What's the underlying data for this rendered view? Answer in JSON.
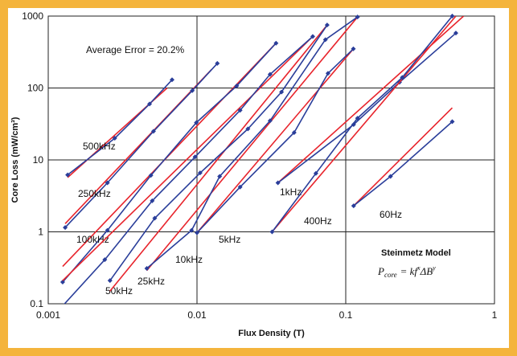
{
  "colors": {
    "frame": "#f4b43c",
    "measured": "#2a3e9a",
    "model": "#e8242c",
    "grid": "#222222"
  },
  "chart_data": {
    "type": "scatter",
    "xscale": "log",
    "yscale": "log",
    "xlim": [
      0.001,
      1
    ],
    "ylim": [
      0.1,
      1000
    ],
    "grid": true,
    "xlabel": "Flux Density (T)",
    "ylabel": "Core Loss (mW/cm³)",
    "x_ticks": [
      "0.001",
      "0.01",
      "0.1",
      "1"
    ],
    "y_ticks": [
      "0.1",
      "1",
      "10",
      "100",
      "1000"
    ],
    "annotations": {
      "average_error": "Average Error = 20.2%",
      "model_title": "Steinmetz Model",
      "equation": {
        "P": "P",
        "sub": "core",
        "rhs": "= kf",
        "x": "x",
        "delta": "ΔB",
        "y": "y"
      }
    },
    "series": [
      {
        "name": "500kHz",
        "measured": [
          [
            0.00135,
            6.2
          ],
          [
            0.0028,
            20
          ],
          [
            0.0048,
            60
          ],
          [
            0.0068,
            130
          ]
        ],
        "model": [
          [
            0.00135,
            5.7
          ],
          [
            0.0063,
            100
          ]
        ]
      },
      {
        "name": "250kHz",
        "measured": [
          [
            0.0013,
            1.15
          ],
          [
            0.0025,
            4.8
          ],
          [
            0.0051,
            25
          ],
          [
            0.0093,
            92
          ],
          [
            0.0137,
            220
          ]
        ],
        "model": [
          [
            0.0013,
            1.3
          ],
          [
            0.0125,
            180
          ]
        ]
      },
      {
        "name": "100kHz",
        "measured": [
          [
            0.00125,
            0.2
          ],
          [
            0.0025,
            1.05
          ],
          [
            0.0049,
            6.1
          ],
          [
            0.0099,
            33
          ],
          [
            0.0185,
            107
          ],
          [
            0.034,
            420
          ]
        ],
        "model": [
          [
            0.00125,
            0.33
          ],
          [
            0.034,
            420
          ]
        ]
      },
      {
        "name": "50kHz",
        "measured": [
          [
            0.0012,
            0.085
          ],
          [
            0.0024,
            0.41
          ],
          [
            0.005,
            2.7
          ],
          [
            0.0097,
            11
          ],
          [
            0.0195,
            49
          ],
          [
            0.031,
            155
          ],
          [
            0.06,
            520
          ]
        ],
        "model": [
          [
            0.00125,
            0.21
          ],
          [
            0.06,
            520
          ]
        ]
      },
      {
        "name": "25kHz",
        "measured": [
          [
            0.0026,
            0.21
          ],
          [
            0.0052,
            1.55
          ],
          [
            0.0105,
            6.6
          ],
          [
            0.022,
            27
          ],
          [
            0.037,
            88
          ],
          [
            0.075,
            750
          ]
        ],
        "model": [
          [
            0.0026,
            0.15
          ],
          [
            0.075,
            750
          ]
        ]
      },
      {
        "name": "10kHz",
        "measured": [
          [
            0.0046,
            0.31
          ],
          [
            0.0092,
            1.05
          ],
          [
            0.0142,
            5.9
          ],
          [
            0.031,
            35
          ],
          [
            0.073,
            470
          ],
          [
            0.12,
            970
          ]
        ],
        "model": [
          [
            0.0046,
            0.29
          ],
          [
            0.12,
            970
          ]
        ]
      },
      {
        "name": "5kHz",
        "measured": [
          [
            0.01,
            0.97
          ],
          [
            0.0195,
            4.2
          ],
          [
            0.045,
            24
          ],
          [
            0.076,
            160
          ],
          [
            0.1125,
            350
          ]
        ],
        "model": [
          [
            0.01,
            0.97
          ],
          [
            0.1125,
            350
          ]
        ]
      },
      {
        "name": "1kHz",
        "measured": [
          [
            0.035,
            4.8
          ],
          [
            0.113,
            31
          ],
          [
            0.23,
            120
          ],
          [
            0.55,
            580
          ]
        ],
        "model": [
          [
            0.035,
            4.8
          ],
          [
            0.62,
            1000
          ]
        ]
      },
      {
        "name": "400Hz",
        "measured": [
          [
            0.032,
            1.0
          ],
          [
            0.063,
            6.5
          ],
          [
            0.12,
            38
          ],
          [
            0.24,
            140
          ],
          [
            0.52,
            1000
          ]
        ],
        "model": [
          [
            0.032,
            1.0
          ],
          [
            0.55,
            1000
          ]
        ]
      },
      {
        "name": "60Hz",
        "measured": [
          [
            0.113,
            2.3
          ],
          [
            0.2,
            5.9
          ],
          [
            0.52,
            34
          ]
        ],
        "model": [
          [
            0.113,
            2.3
          ],
          [
            0.52,
            53
          ]
        ]
      }
    ]
  }
}
